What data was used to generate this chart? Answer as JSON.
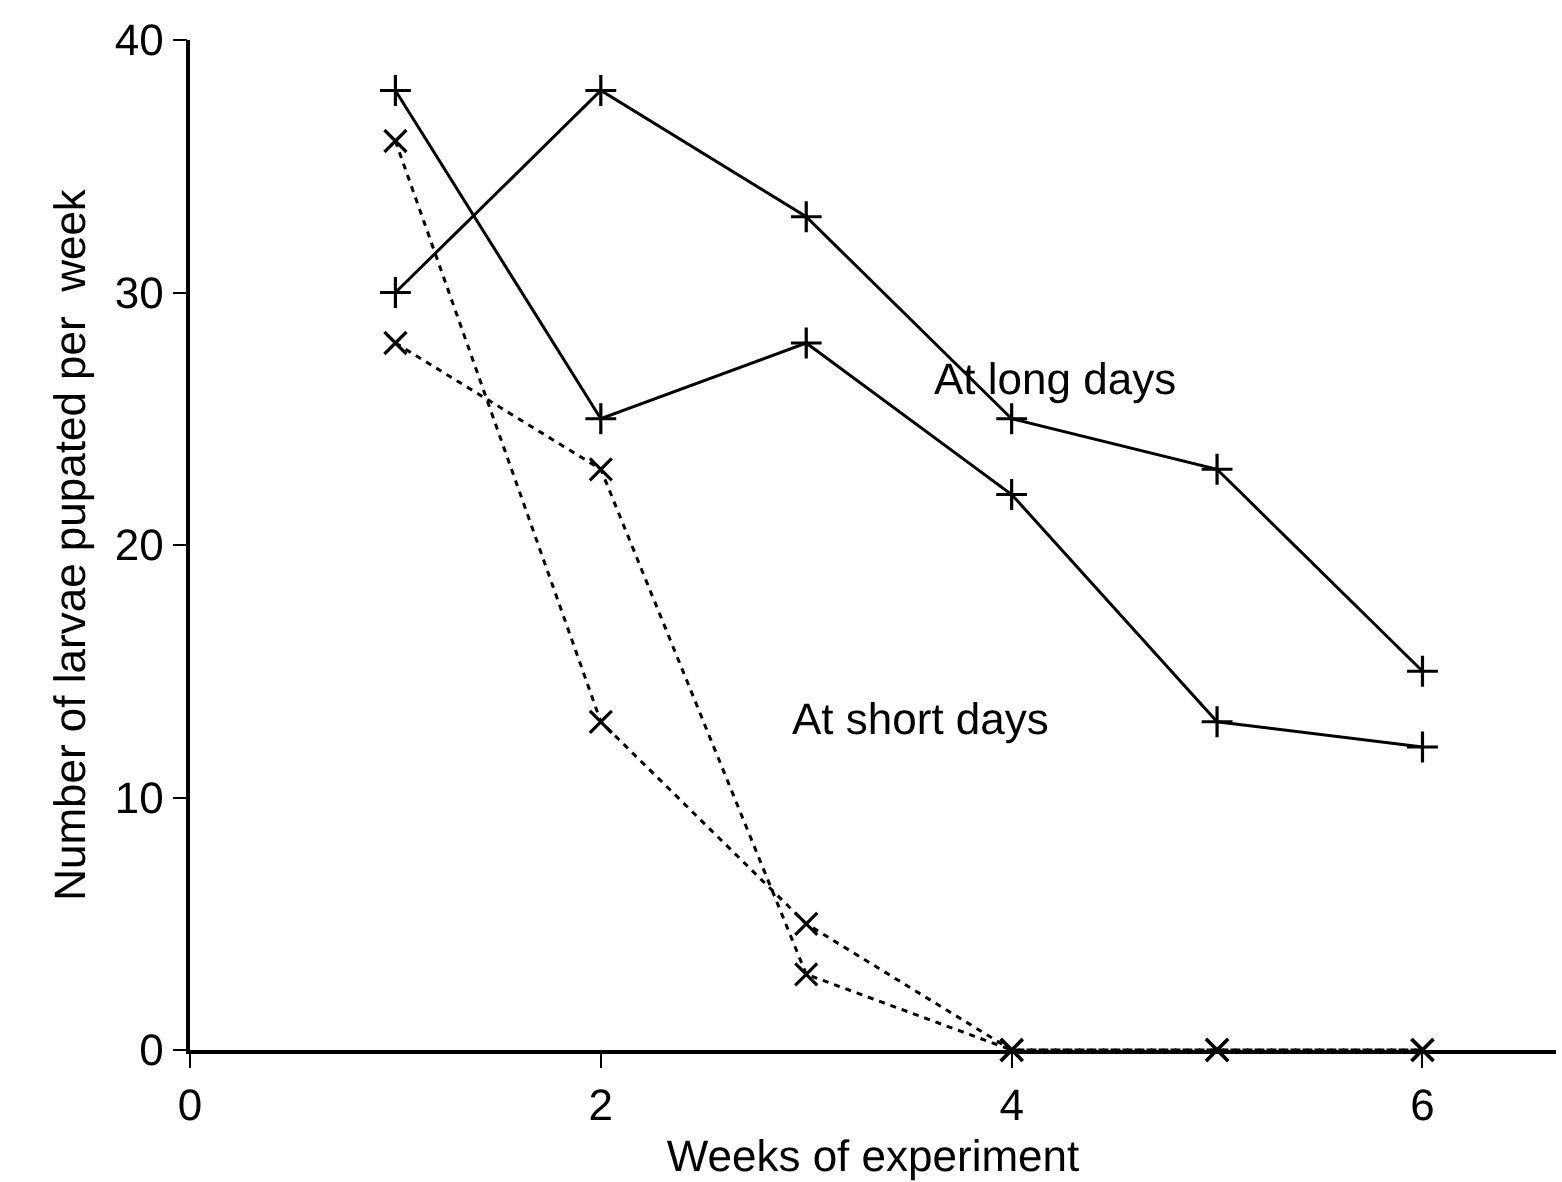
{
  "chart_data": {
    "type": "line",
    "xlabel": "Weeks of experiment",
    "ylabel": "Number of larvae pupated per  week",
    "x": [
      1,
      2,
      3,
      4,
      5,
      6
    ],
    "xlim": [
      0,
      6.65
    ],
    "xticks": [
      0,
      2,
      4,
      6
    ],
    "ylim": [
      0,
      40
    ],
    "yticks": [
      0,
      10,
      20,
      30,
      40
    ],
    "series": [
      {
        "color": "#000000",
        "values": [
          38,
          25,
          28,
          22,
          13,
          12
        ],
        "marker": "plus",
        "line_style": "solid"
      },
      {
        "color": "#000000",
        "values": [
          30,
          38,
          33,
          25,
          23,
          15
        ],
        "marker": "plus",
        "line_style": "solid"
      },
      {
        "color": "#000000",
        "values": [
          36,
          13,
          5,
          0,
          0,
          0
        ],
        "marker": "cross",
        "line_style": "dotted"
      },
      {
        "color": "#000000",
        "values": [
          28,
          23,
          3,
          0,
          0,
          0
        ],
        "marker": "cross",
        "line_style": "dotted"
      }
    ],
    "annotations": [
      "At long days",
      "At short days"
    ]
  }
}
